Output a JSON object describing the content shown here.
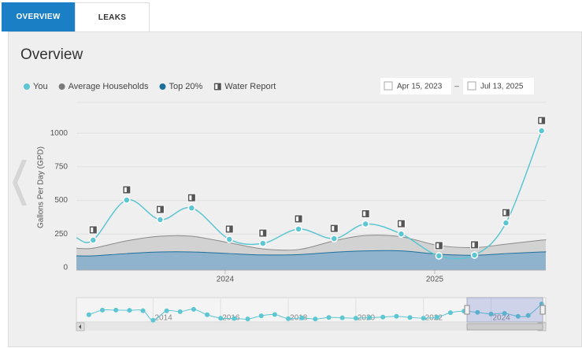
{
  "tabs": [
    "OVERVIEW",
    "LEAKS"
  ],
  "header": {
    "title": "Overview"
  },
  "date_range": {
    "start": "Apr 15, 2023",
    "separator": "–",
    "end": "Jul 13, 2025"
  },
  "chart_data": {
    "type": "line",
    "y_label": "Gallons Per Day (GPD)",
    "legend_extra": "Water Report",
    "x": [
      2023.37,
      2023.53,
      2023.69,
      2023.84,
      2024.02,
      2024.18,
      2024.35,
      2024.52,
      2024.67,
      2024.84,
      2025.02,
      2025.19,
      2025.34,
      2025.51
    ],
    "xlim": [
      2023.29,
      2025.53
    ],
    "xticks": [
      2024,
      2025
    ],
    "ylim": [
      0,
      1200
    ],
    "yticks": [
      0,
      250,
      500,
      750,
      1000
    ],
    "grid": true,
    "series": [
      {
        "name": "You",
        "color": "#5cc6d2",
        "values": [
          205,
          503,
          357,
          444,
          211,
          181,
          287,
          216,
          325,
          251,
          88,
          94,
          333,
          1018
        ]
      },
      {
        "name": "Average Households",
        "color": "#7a7a7a",
        "values": [
          145,
          200,
          234,
          234,
          185,
          140,
          135,
          200,
          240,
          230,
          165,
          150,
          175,
          205
        ]
      },
      {
        "name": "Top 20%",
        "color": "#1f6f9c",
        "values": [
          88,
          105,
          117,
          117,
          105,
          95,
          97,
          115,
          125,
          125,
          100,
          92,
          105,
          117
        ]
      }
    ],
    "navigator": {
      "x": [
        2012.1,
        2012.5,
        2012.9,
        2013.3,
        2013.7,
        2014.0,
        2014.4,
        2014.8,
        2015.2,
        2015.6,
        2016.0,
        2016.4,
        2016.8,
        2017.2,
        2017.6,
        2018.0,
        2018.4,
        2018.8,
        2019.2,
        2019.6,
        2020.0,
        2020.4,
        2020.8,
        2021.2,
        2021.6,
        2022.0,
        2022.4,
        2022.8,
        2023.2,
        2023.6,
        2024.0,
        2024.4,
        2024.8,
        2025.1,
        2025.5
      ],
      "values": [
        380,
        650,
        650,
        640,
        620,
        60,
        610,
        560,
        700,
        380,
        180,
        160,
        130,
        320,
        390,
        150,
        190,
        130,
        220,
        200,
        180,
        210,
        240,
        290,
        220,
        180,
        230,
        500,
        590,
        520,
        420,
        460,
        290,
        340,
        1018
      ],
      "xlim": [
        2011.8,
        2025.55
      ],
      "ylim": [
        0,
        1200
      ],
      "xticks": [
        2014,
        2016,
        2018,
        2020,
        2022,
        2024
      ]
    }
  }
}
